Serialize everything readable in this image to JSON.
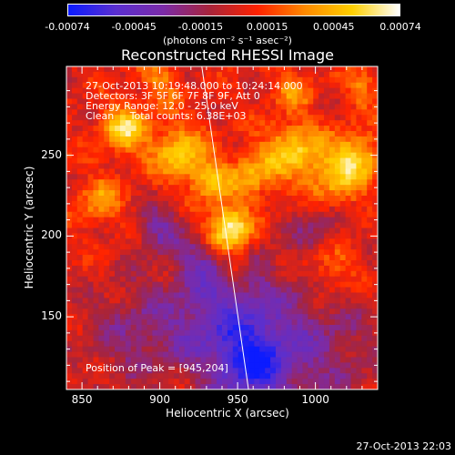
{
  "colors": {
    "background": "#000000",
    "text": "#ffffff"
  },
  "colorbar": {
    "palette": [
      "#0b1bff",
      "#5a2fd0",
      "#7b2ba8",
      "#a8243a",
      "#ff2200",
      "#ff8a00",
      "#ffd000",
      "#ffffff"
    ],
    "ticks": [
      "-0.00074",
      "-0.00045",
      "-0.00015",
      "0.00015",
      "0.00045",
      "0.00074"
    ],
    "label": "(photons cm⁻² s⁻¹ asec⁻²)"
  },
  "chart_data": {
    "type": "heatmap",
    "title": "Reconstructed RHESSI Image",
    "xlabel": "Heliocentric X (arcsec)",
    "ylabel": "Heliocentric Y (arcsec)",
    "xlim": [
      840,
      1040
    ],
    "ylim": [
      105,
      305
    ],
    "x_ticks": [
      850,
      900,
      950,
      1000
    ],
    "y_ticks": [
      150,
      200,
      250
    ],
    "annotations": [
      "27-Oct-2013 10:19:48.000 to 10:24:14.000",
      "Detectors: 3F 5F 6F 7F 8F 9F, Att 0",
      "Energy Range: 12.0 - 25.0 keV",
      "Clean     Total counts: 6.38E+03"
    ],
    "peak_text": "Position of Peak = [945,204]",
    "peak_position": [
      945,
      204
    ],
    "limb_line": [
      [
        927,
        305
      ],
      [
        957,
        105
      ]
    ],
    "sources": [
      {
        "x": 945,
        "y": 204,
        "sigma": 10,
        "amp": 1.0
      },
      {
        "x": 877,
        "y": 266,
        "sigma": 10,
        "amp": 0.75
      },
      {
        "x": 912,
        "y": 252,
        "sigma": 12,
        "amp": 0.65
      },
      {
        "x": 932,
        "y": 234,
        "sigma": 9,
        "amp": 0.55
      },
      {
        "x": 960,
        "y": 238,
        "sigma": 11,
        "amp": 0.5
      },
      {
        "x": 985,
        "y": 254,
        "sigma": 12,
        "amp": 0.6
      },
      {
        "x": 1012,
        "y": 238,
        "sigma": 14,
        "amp": 0.55
      },
      {
        "x": 1028,
        "y": 250,
        "sigma": 10,
        "amp": 0.5
      },
      {
        "x": 1010,
        "y": 180,
        "sigma": 12,
        "amp": 0.35
      },
      {
        "x": 862,
        "y": 222,
        "sigma": 10,
        "amp": 0.45
      },
      {
        "x": 900,
        "y": 295,
        "sigma": 9,
        "amp": 0.35
      },
      {
        "x": 985,
        "y": 290,
        "sigma": 8,
        "amp": 0.4
      },
      {
        "x": 1030,
        "y": 292,
        "sigma": 8,
        "amp": 0.35
      },
      {
        "x": 950,
        "y": 180,
        "sigma": 6,
        "amp": 0.35
      },
      {
        "x": 925,
        "y": 185,
        "sigma": 9,
        "amp": -0.3
      },
      {
        "x": 900,
        "y": 205,
        "sigma": 10,
        "amp": -0.45
      },
      {
        "x": 940,
        "y": 150,
        "sigma": 28,
        "amp": -0.6
      },
      {
        "x": 960,
        "y": 120,
        "sigma": 16,
        "amp": -0.65
      },
      {
        "x": 1000,
        "y": 130,
        "sigma": 30,
        "amp": -0.35
      },
      {
        "x": 880,
        "y": 140,
        "sigma": 22,
        "amp": -0.3
      },
      {
        "x": 1000,
        "y": 205,
        "sigma": 12,
        "amp": -0.3
      }
    ]
  },
  "timestamp": "27-Oct-2013 22:03"
}
